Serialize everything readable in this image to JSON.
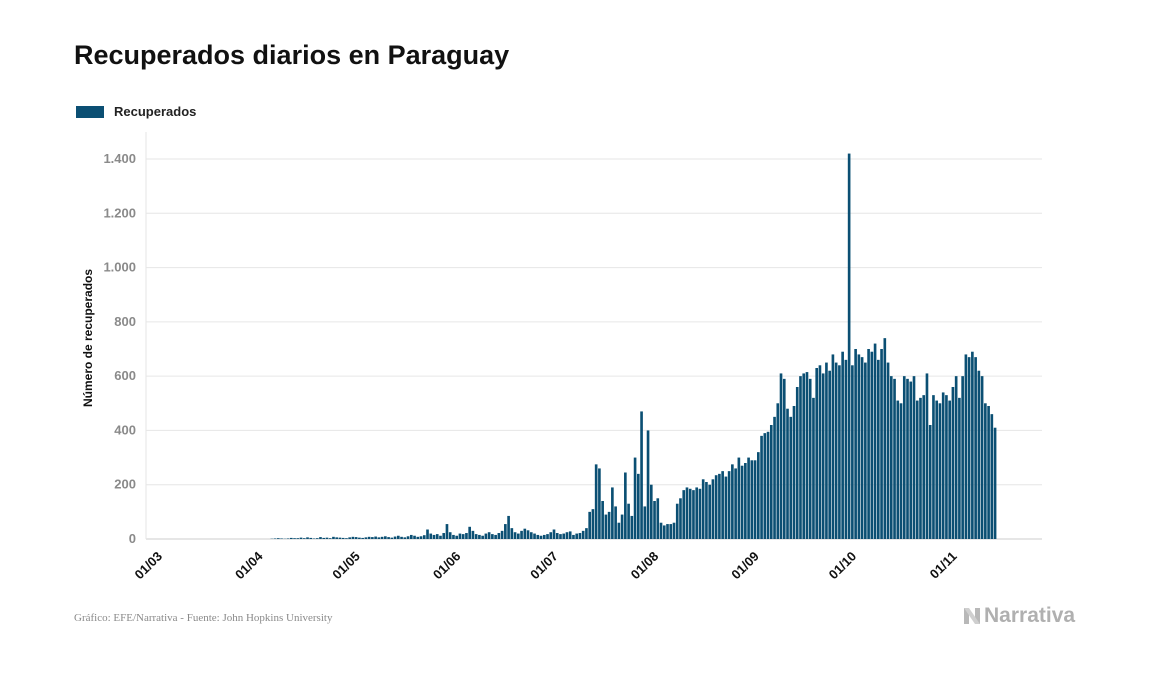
{
  "chart_data": {
    "type": "bar",
    "title": "Recuperados diarios en Paraguay",
    "ylabel": "Número de recuperados",
    "xlabel": "",
    "ylim": [
      0,
      1400
    ],
    "y_ticks": [
      0,
      200,
      400,
      600,
      800,
      1000,
      1200,
      1400
    ],
    "y_tick_labels": [
      "0",
      "200",
      "400",
      "600",
      "800",
      "1.000",
      "1.200",
      "1.400"
    ],
    "grid": true,
    "legend_position": "top-left",
    "bar_color": "#0b4f73",
    "x_tick_labels": [
      "01/03",
      "01/04",
      "01/05",
      "01/06",
      "01/07",
      "01/08",
      "01/09",
      "01/10",
      "01/11"
    ],
    "x_start": "01/03",
    "x_end": "15/11",
    "series": [
      {
        "name": "Recuperados",
        "values": [
          0,
          0,
          0,
          0,
          0,
          0,
          0,
          0,
          0,
          0,
          0,
          0,
          0,
          0,
          0,
          0,
          0,
          0,
          0,
          0,
          0,
          0,
          0,
          0,
          0,
          0,
          0,
          0,
          0,
          0,
          0,
          0,
          0,
          0,
          0,
          1,
          2,
          3,
          2,
          1,
          2,
          4,
          3,
          3,
          5,
          3,
          6,
          4,
          2,
          3,
          7,
          4,
          5,
          3,
          8,
          6,
          5,
          4,
          3,
          6,
          8,
          7,
          5,
          4,
          6,
          8,
          7,
          9,
          6,
          8,
          10,
          7,
          5,
          9,
          12,
          8,
          6,
          10,
          15,
          12,
          8,
          10,
          14,
          35,
          20,
          15,
          18,
          12,
          22,
          55,
          25,
          15,
          12,
          20,
          18,
          22,
          45,
          30,
          18,
          15,
          12,
          20,
          25,
          18,
          15,
          22,
          30,
          55,
          85,
          40,
          25,
          20,
          30,
          38,
          32,
          25,
          20,
          15,
          12,
          15,
          18,
          25,
          35,
          22,
          18,
          20,
          25,
          28,
          15,
          20,
          22,
          30,
          40,
          100,
          110,
          275,
          260,
          140,
          90,
          100,
          190,
          120,
          60,
          90,
          245,
          130,
          85,
          300,
          240,
          470,
          120,
          400,
          200,
          140,
          150,
          60,
          50,
          55,
          55,
          60,
          130,
          150,
          180,
          190,
          185,
          180,
          190,
          185,
          220,
          210,
          200,
          220,
          235,
          240,
          250,
          230,
          250,
          275,
          260,
          300,
          270,
          280,
          300,
          290,
          290,
          320,
          380,
          390,
          395,
          420,
          450,
          500,
          610,
          590,
          480,
          450,
          490,
          560,
          600,
          610,
          615,
          590,
          520,
          630,
          640,
          610,
          650,
          620,
          680,
          650,
          640,
          690,
          660,
          1420,
          640,
          700,
          680,
          670,
          650,
          700,
          690,
          720,
          660,
          700,
          740,
          650,
          600,
          590,
          510,
          500,
          600,
          590,
          580,
          600,
          510,
          520,
          530,
          610,
          420,
          530,
          510,
          500,
          540,
          530,
          510,
          560,
          600,
          520,
          600,
          680,
          670,
          690,
          670,
          620,
          600,
          500,
          490,
          460,
          410
        ]
      }
    ],
    "source": "Gráfico: EFE/Narrativa - Fuente: John Hopkins University",
    "logo_text": "Narrativa"
  }
}
